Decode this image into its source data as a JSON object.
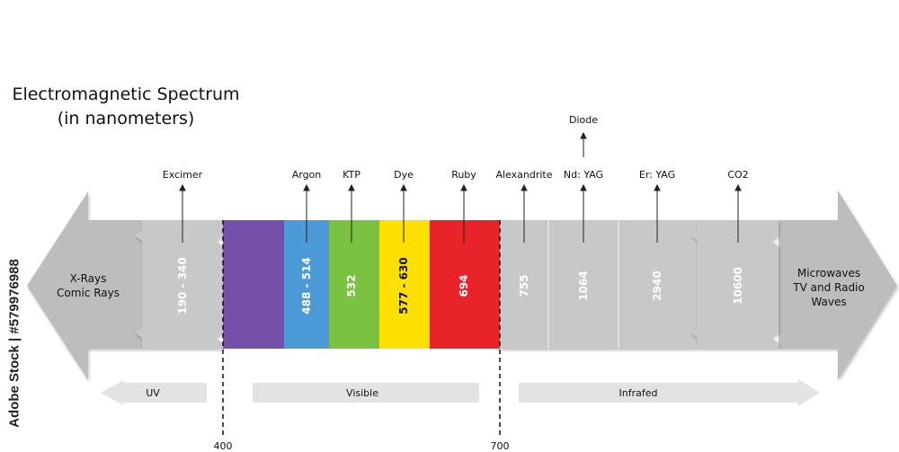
{
  "title": {
    "line1": "Electromagnetic Spectrum",
    "line2": "(in nanometers)"
  },
  "left_arrow": {
    "line1": "X-Rays",
    "line2": "Comic Rays"
  },
  "right_arrow": {
    "line1": "Microwaves",
    "line2": "TV and Radio",
    "line3": "Waves"
  },
  "segments": [
    {
      "value": "190 - 340",
      "laser": "Excimer",
      "color": "#c8c8c8"
    },
    {
      "value": "",
      "laser": "",
      "color": "#7450a8"
    },
    {
      "value": "488 - 514",
      "laser": "Argon",
      "color": "#4c9ad8"
    },
    {
      "value": "532",
      "laser": "KTP",
      "color": "#7cc242"
    },
    {
      "value": "577 - 630",
      "laser": "Dye",
      "color": "#fde000"
    },
    {
      "value": "694",
      "laser": "Ruby",
      "color": "#e8232a"
    },
    {
      "value": "755",
      "laser": "Alexandrite",
      "color": "#c8c8c8"
    },
    {
      "value": "1064",
      "laser": "Nd: YAG",
      "color": "#c8c8c8"
    },
    {
      "value": "2940",
      "laser": "Er: YAG",
      "color": "#c8c8c8"
    },
    {
      "value": "10600",
      "laser": "CO2",
      "color": "#c8c8c8"
    }
  ],
  "diode_label": "Diode",
  "regions": {
    "uv": "UV",
    "visible": "Visible",
    "infrared": "Infrafed"
  },
  "boundaries": {
    "left": "400",
    "right": "700"
  },
  "watermark": "Adobe Stock | #579976988",
  "colors": {
    "gray_body": "#c8c8c8",
    "gray_arrow": "#bdbdbd",
    "region_arrow": "#e3e3e3"
  }
}
